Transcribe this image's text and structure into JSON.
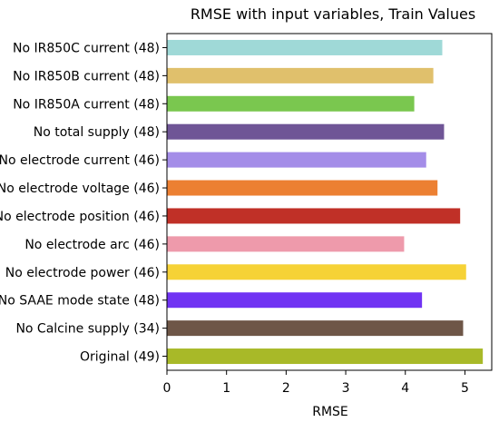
{
  "chart_data": {
    "type": "bar",
    "orientation": "horizontal",
    "title": "RMSE with input variables, Train Values",
    "xlabel": "RMSE",
    "ylabel": "",
    "xlim": [
      0,
      5.45
    ],
    "xticks": [
      "0",
      "1",
      "2",
      "3",
      "4",
      "5"
    ],
    "grid": false,
    "categories": [
      "No IR850C current (48)",
      "No IR850B current (48)",
      "No IR850A current (48)",
      "No total supply (48)",
      "No electrode current (46)",
      "No electrode voltage (46)",
      "No electrode position (46)",
      "No electrode arc (46)",
      "No electrode power (46)",
      "No SAAE mode state (48)",
      "No Calcine supply (34)",
      "Original (49)"
    ],
    "values": [
      4.62,
      4.47,
      4.15,
      4.65,
      4.35,
      4.54,
      4.92,
      3.98,
      5.02,
      4.28,
      4.97,
      5.3
    ],
    "colors": [
      "#9fd9d7",
      "#e0c06c",
      "#7ac74f",
      "#6f5596",
      "#a48de8",
      "#ec8032",
      "#c03027",
      "#ee9aab",
      "#f6d236",
      "#7033f3",
      "#6e5647",
      "#a8b928"
    ]
  }
}
